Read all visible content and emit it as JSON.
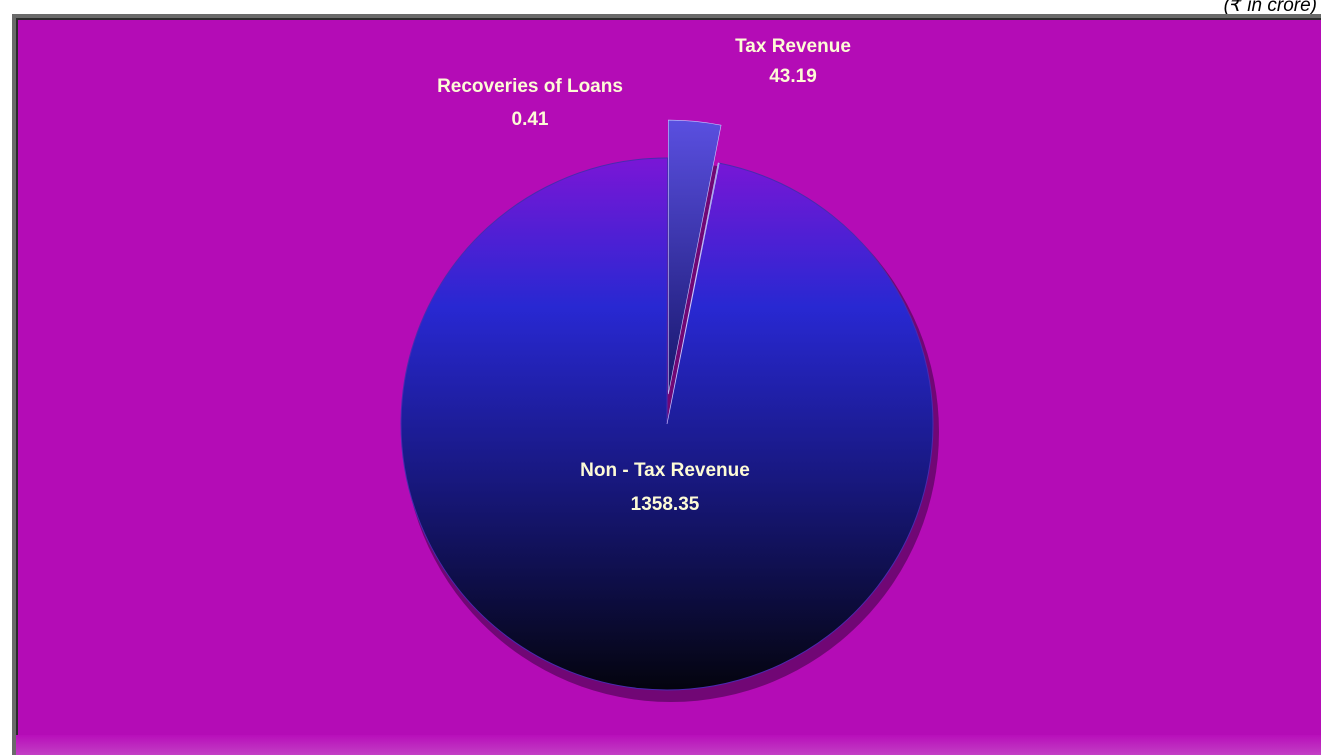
{
  "units_note": "(₹ in crore)",
  "chart_data": {
    "type": "pie",
    "title": "",
    "slices": [
      {
        "label": "Tax Revenue",
        "value": 43.19
      },
      {
        "label": "Recoveries of Loans",
        "value": 0.41
      },
      {
        "label": "Non - Tax Revenue",
        "value": 1358.35
      }
    ],
    "labels_text": [
      {
        "name": "Tax Revenue",
        "value": "43.19"
      },
      {
        "name": "Recoveries of Loans",
        "value": "0.41"
      },
      {
        "name": "Non - Tax Revenue",
        "value": "1358.35"
      }
    ],
    "legend": "none",
    "colors": {
      "background": "#b40cb6",
      "pie_top": "#7a16d6",
      "pie_mid": "#2323c8",
      "pie_bottom": "#05051a",
      "label_text": "#fdfbd6"
    }
  }
}
